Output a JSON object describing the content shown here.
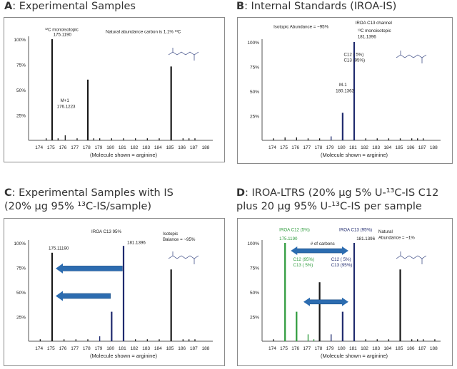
{
  "panels": [
    {
      "letter": "A",
      "title": ": Experimental Samples",
      "title_line2": ""
    },
    {
      "letter": "B",
      "title": ": Internal Standards (IROA-IS)",
      "title_line2": ""
    },
    {
      "letter": "C",
      "title": ": Experimental Samples with IS",
      "title_line2": "(20% µg 95% ¹³C-IS/sample)"
    },
    {
      "letter": "D",
      "title": ": IROA-LTRS (20% µg 5% U-¹³C-IS C12",
      "title_line2": "plus 20 µg 95% U-¹³C-IS per sample"
    }
  ],
  "colors": {
    "black": "#1a1a1a",
    "navy": "#1f2a6e",
    "green": "#2e9b3c",
    "arrow_blue": "#2c6cb0"
  },
  "chart_data": [
    {
      "type": "bar",
      "panel": "A",
      "x_ticks": [
        "174",
        "175",
        "176",
        "177",
        "178",
        "179",
        "180",
        "181",
        "182",
        "183",
        "184",
        "185",
        "186",
        "187",
        "188"
      ],
      "y_ticks": [
        "25%",
        "50%",
        "75%",
        "100%"
      ],
      "xlabel": "(Molecule shown = arginine)",
      "ylim": [
        0,
        100
      ],
      "series": [
        {
          "color": "#1a1a1a",
          "points": [
            {
              "x": 174.6,
              "y": 2
            },
            {
              "x": 175.1,
              "y": 100
            },
            {
              "x": 175.6,
              "y": 2
            },
            {
              "x": 176.2,
              "y": 5
            },
            {
              "x": 177.2,
              "y": 2
            },
            {
              "x": 178.1,
              "y": 60
            },
            {
              "x": 178.6,
              "y": 2
            },
            {
              "x": 179.1,
              "y": 2
            },
            {
              "x": 180.1,
              "y": 2
            },
            {
              "x": 181.1,
              "y": 2
            },
            {
              "x": 182.1,
              "y": 2
            },
            {
              "x": 183.1,
              "y": 2
            },
            {
              "x": 184.1,
              "y": 2
            },
            {
              "x": 185.1,
              "y": 73
            },
            {
              "x": 186.1,
              "y": 2
            },
            {
              "x": 186.6,
              "y": 2
            },
            {
              "x": 187.1,
              "y": 2
            }
          ]
        }
      ],
      "labels": [
        {
          "text": "¹²C monoisotopic",
          "x": 174.5,
          "y": 108
        },
        {
          "text": "175.1190",
          "x": 175.2,
          "y": 103
        },
        {
          "text": "M+1",
          "x": 175.8,
          "y": 38
        },
        {
          "text": "176.1223",
          "x": 175.5,
          "y": 32
        },
        {
          "text": "Natural abundance carbon is 1.1% ¹³C",
          "x": 179.6,
          "y": 106
        }
      ]
    },
    {
      "type": "bar",
      "panel": "B",
      "x_ticks": [
        "174",
        "175",
        "176",
        "177",
        "178",
        "179",
        "180",
        "181",
        "182",
        "183",
        "184",
        "185",
        "186",
        "187",
        "188"
      ],
      "y_ticks": [
        "25%",
        "50%",
        "75%",
        "100%"
      ],
      "xlabel": "(Molecule shown = arginine)",
      "ylim": [
        0,
        100
      ],
      "series": [
        {
          "color": "#1a1a1a",
          "points": [
            {
              "x": 174.1,
              "y": 2
            },
            {
              "x": 175.1,
              "y": 3
            },
            {
              "x": 176.1,
              "y": 3
            },
            {
              "x": 177.1,
              "y": 2
            },
            {
              "x": 178.1,
              "y": 2
            },
            {
              "x": 182.1,
              "y": 2
            },
            {
              "x": 183.1,
              "y": 2
            },
            {
              "x": 184.1,
              "y": 2
            },
            {
              "x": 185.1,
              "y": 2
            },
            {
              "x": 186.1,
              "y": 2
            },
            {
              "x": 186.6,
              "y": 2
            },
            {
              "x": 187.1,
              "y": 2
            }
          ]
        },
        {
          "color": "#1f2a6e",
          "points": [
            {
              "x": 179.1,
              "y": 4
            },
            {
              "x": 180.1,
              "y": 28
            },
            {
              "x": 181.1,
              "y": 100
            }
          ]
        }
      ],
      "labels": [
        {
          "text": "Isotopic Abundance = ~95%",
          "x": 174.1,
          "y": 114
        },
        {
          "text": "IROA C13 channel",
          "x": 181.2,
          "y": 118
        },
        {
          "text": "¹³C monoisotopic",
          "x": 181.4,
          "y": 110
        },
        {
          "text": "181.1396",
          "x": 181.4,
          "y": 104
        },
        {
          "text": "C12 ( 5%)",
          "x": 180.2,
          "y": 86
        },
        {
          "text": "C13 (95%)",
          "x": 180.2,
          "y": 80
        },
        {
          "text": "M-1",
          "x": 179.8,
          "y": 55
        },
        {
          "text": "180.1363",
          "x": 179.5,
          "y": 49
        }
      ]
    },
    {
      "type": "bar",
      "panel": "C",
      "x_ticks": [
        "174",
        "175",
        "176",
        "177",
        "178",
        "179",
        "180",
        "181",
        "182",
        "183",
        "184",
        "185",
        "186",
        "187",
        "188"
      ],
      "y_ticks": [
        "25%",
        "50%",
        "75%",
        "100%"
      ],
      "xlabel": "(Molecule shown = arginine)",
      "ylim": [
        0,
        100
      ],
      "series": [
        {
          "color": "#1a1a1a",
          "points": [
            {
              "x": 174.1,
              "y": 2
            },
            {
              "x": 175.1,
              "y": 90
            },
            {
              "x": 176.1,
              "y": 2
            },
            {
              "x": 177.1,
              "y": 2
            },
            {
              "x": 178.1,
              "y": 2
            },
            {
              "x": 182.1,
              "y": 2
            },
            {
              "x": 183.1,
              "y": 2
            },
            {
              "x": 184.1,
              "y": 2
            },
            {
              "x": 185.1,
              "y": 73
            },
            {
              "x": 186.1,
              "y": 2
            },
            {
              "x": 186.6,
              "y": 2
            },
            {
              "x": 187.1,
              "y": 2
            }
          ]
        },
        {
          "color": "#1f2a6e",
          "points": [
            {
              "x": 179.1,
              "y": 5
            },
            {
              "x": 180.1,
              "y": 30
            },
            {
              "x": 181.1,
              "y": 97
            }
          ]
        }
      ],
      "labels": [
        {
          "text": "175.11190",
          "x": 174.8,
          "y": 93
        },
        {
          "text": "IROA C13 95%",
          "x": 178.4,
          "y": 110
        },
        {
          "text": "181.1396",
          "x": 181.4,
          "y": 99
        },
        {
          "text": "Isotopic",
          "x": 184.4,
          "y": 108
        },
        {
          "text": "Balance = ~95%",
          "x": 184.4,
          "y": 102
        }
      ],
      "arrows": [
        {
          "from_x": 181.0,
          "y": 74,
          "to_x": 175.4
        },
        {
          "from_x": 180.0,
          "y": 46,
          "to_x": 175.4
        }
      ]
    },
    {
      "type": "bar",
      "panel": "D",
      "x_ticks": [
        "174",
        "175",
        "176",
        "177",
        "178",
        "179",
        "180",
        "181",
        "182",
        "183",
        "184",
        "185",
        "186",
        "187",
        "188"
      ],
      "y_ticks": [
        "25%",
        "50%",
        "75%",
        "100%"
      ],
      "xlabel": "(Molecule shown = arginine)",
      "ylim": [
        0,
        100
      ],
      "series": [
        {
          "color": "#1a1a1a",
          "points": [
            {
              "x": 174.1,
              "y": 2
            },
            {
              "x": 178.1,
              "y": 60
            },
            {
              "x": 182.1,
              "y": 2
            },
            {
              "x": 183.1,
              "y": 2
            },
            {
              "x": 184.1,
              "y": 2
            },
            {
              "x": 185.1,
              "y": 73
            },
            {
              "x": 186.1,
              "y": 2
            },
            {
              "x": 186.6,
              "y": 2
            },
            {
              "x": 187.1,
              "y": 2
            },
            {
              "x": 188.1,
              "y": 2
            }
          ]
        },
        {
          "color": "#2e9b3c",
          "points": [
            {
              "x": 175.1,
              "y": 100
            },
            {
              "x": 176.1,
              "y": 30
            },
            {
              "x": 177.1,
              "y": 7
            },
            {
              "x": 177.6,
              "y": 2
            }
          ]
        },
        {
          "color": "#1f2a6e",
          "points": [
            {
              "x": 179.1,
              "y": 7
            },
            {
              "x": 180.1,
              "y": 30
            },
            {
              "x": 181.1,
              "y": 100
            }
          ]
        }
      ],
      "labels": [
        {
          "text": "IROA C12 (5%)",
          "x": 174.6,
          "y": 112,
          "color": "#2e9b3c"
        },
        {
          "text": "IROA C13 (95%)",
          "x": 179.8,
          "y": 112,
          "color": "#1f2a6e"
        },
        {
          "text": "175.1190",
          "x": 174.6,
          "y": 103,
          "color": "#2e9b3c"
        },
        {
          "text": "181.1396",
          "x": 181.3,
          "y": 103
        },
        {
          "text": "Natural",
          "x": 183.2,
          "y": 110
        },
        {
          "text": "Abundance = ~1%",
          "x": 183.2,
          "y": 104
        },
        {
          "text": "# of carbons",
          "x": 177.3,
          "y": 98
        },
        {
          "text": "C12 (95%)",
          "x": 175.8,
          "y": 82,
          "color": "#2e9b3c"
        },
        {
          "text": "C13 ( 5%)",
          "x": 175.8,
          "y": 76,
          "color": "#2e9b3c"
        },
        {
          "text": "C12 ( 5%)",
          "x": 179.1,
          "y": 82,
          "color": "#1f2a6e"
        },
        {
          "text": "C13 (95%)",
          "x": 179.1,
          "y": 76,
          "color": "#1f2a6e"
        }
      ],
      "arrows": [
        {
          "from_x": 175.6,
          "y": 92,
          "to_x": 180.6,
          "both": true
        },
        {
          "from_x": 176.7,
          "y": 40,
          "to_x": 180.6,
          "both": true
        }
      ]
    }
  ]
}
